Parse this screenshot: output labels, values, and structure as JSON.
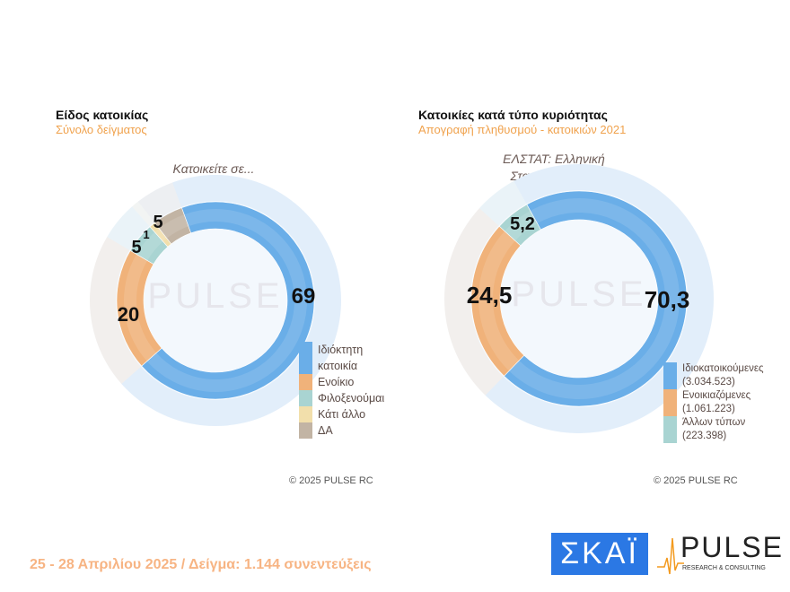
{
  "chart_data": [
    {
      "type": "pie",
      "title": "Είδος κατοικίας",
      "subtitle": "Σύνολο δείγματος",
      "question": "Κατοικείτε σε...",
      "categories": [
        "Ιδιόκτητη κατοικία",
        "Ενοίκιο",
        "Φιλοξενούμαι",
        "Κάτι άλλο",
        "ΔΑ"
      ],
      "values": [
        69,
        20,
        5,
        1,
        5
      ],
      "labels": [
        "69",
        "20",
        "5",
        "1",
        "5"
      ],
      "colors": [
        "#6aaee8",
        "#f0b27a",
        "#a9d4d2",
        "#f2dfab",
        "#c2b4a4"
      ],
      "legend": "bottom-right",
      "copyright": "©  2025  PULSE RC"
    },
    {
      "type": "pie",
      "title": "Κατοικίες κατά τύπο κυριότητας",
      "subtitle": "Απογραφή πληθυσμού - κατοικιών 2021",
      "question": "ΕΛΣΤΑΤ: Ελληνική Στατιστική Αρχή",
      "categories": [
        "Ιδιοκατοικούμενες (3.034.523)",
        "Ενοικιαζόμενες (1.061.223)",
        "Άλλων τύπων (223.398)"
      ],
      "values": [
        70.3,
        24.5,
        5.2
      ],
      "labels": [
        "70,3",
        "24,5",
        "5,2"
      ],
      "colors": [
        "#6aaee8",
        "#f0b27a",
        "#a9d4d2"
      ],
      "legend": "bottom-right",
      "copyright": "©  2025  PULSE RC"
    }
  ],
  "footer": {
    "text": "25 - 28 Απριλίου 2025  /  Δείγμα:  1.144 συνεντεύξεις",
    "logo_skai": "ΣΚΑΪ",
    "logo_pulse": "PULSE",
    "logo_pulse_sub": "RESEARCH & CONSULTING"
  }
}
